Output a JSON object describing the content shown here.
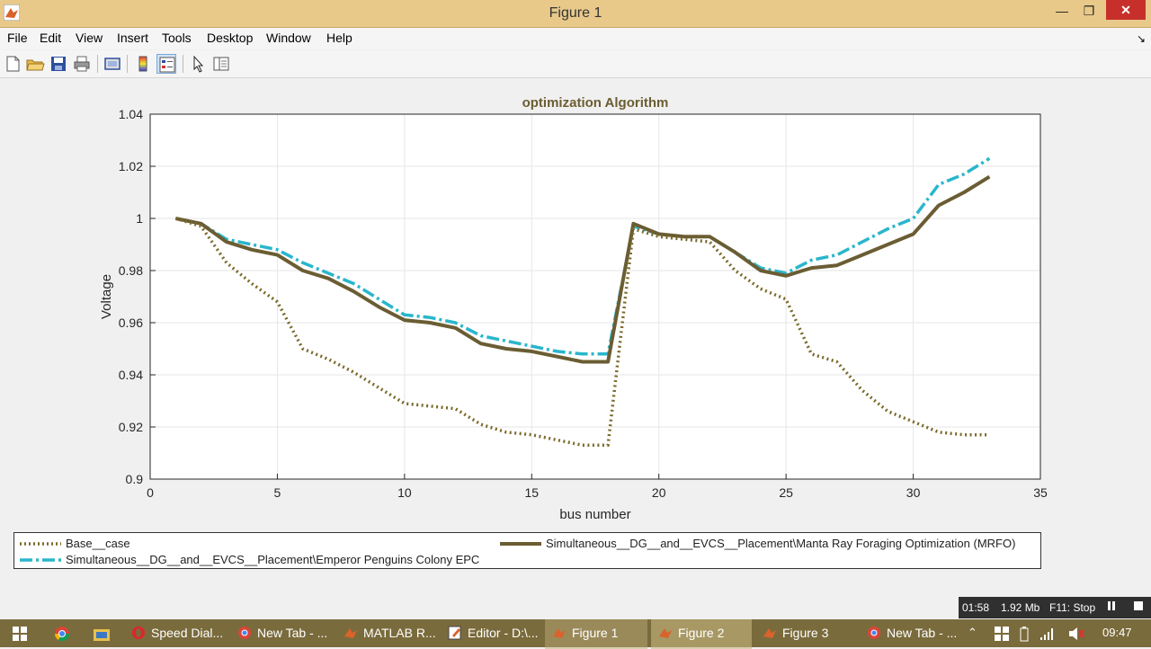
{
  "window": {
    "title": "Figure 1",
    "min_glyph": "—",
    "max_glyph": "❐",
    "close_glyph": "✕"
  },
  "menu": [
    "File",
    "Edit",
    "View",
    "Insert",
    "Tools",
    "Desktop",
    "Window",
    "Help"
  ],
  "menu_arrow": "↘",
  "toolbar_icons": [
    "new-figure-icon",
    "open-file-icon",
    "save-icon",
    "print-icon",
    "print-preview-icon",
    "insert-colorbar-icon",
    "insert-legend-icon",
    "edit-plot-icon",
    "property-inspector-icon"
  ],
  "colors": {
    "base": "#7a6a2a",
    "mrfo": "#6b5d33",
    "epc": "#29b6cc",
    "title": "#6b5d33",
    "taskbar": "#7a6b3c"
  },
  "chart_data": {
    "type": "line",
    "title": "optimization Algorithm",
    "xlabel": "bus number",
    "ylabel": "Voltage",
    "xlim": [
      0,
      35
    ],
    "ylim": [
      0.9,
      1.04
    ],
    "xticks": [
      "0",
      "5",
      "10",
      "15",
      "20",
      "25",
      "30",
      "35"
    ],
    "yticks": [
      "0.9",
      "0.92",
      "0.94",
      "0.96",
      "0.98",
      "1",
      "1.02",
      "1.04"
    ],
    "grid": true,
    "legend_position": "bottom",
    "x": [
      1,
      2,
      3,
      4,
      5,
      6,
      7,
      8,
      9,
      10,
      11,
      12,
      13,
      14,
      15,
      16,
      17,
      18,
      19,
      20,
      21,
      22,
      23,
      24,
      25,
      26,
      27,
      28,
      29,
      30,
      31,
      32,
      33
    ],
    "series": [
      {
        "name": "Base__case",
        "style": "dotted",
        "values": [
          1.0,
          0.997,
          0.983,
          0.975,
          0.968,
          0.95,
          0.946,
          0.941,
          0.935,
          0.929,
          0.928,
          0.927,
          0.921,
          0.918,
          0.917,
          0.915,
          0.913,
          0.913,
          0.996,
          0.993,
          0.992,
          0.991,
          0.98,
          0.973,
          0.969,
          0.948,
          0.945,
          0.934,
          0.926,
          0.922,
          0.918,
          0.917,
          0.917
        ]
      },
      {
        "name": "Simultaneous__DG__and__EVCS__Placement\\Manta Ray Foraging Optimization (MRFO)",
        "style": "solid",
        "values": [
          1.0,
          0.998,
          0.991,
          0.988,
          0.986,
          0.98,
          0.977,
          0.972,
          0.966,
          0.961,
          0.96,
          0.958,
          0.952,
          0.95,
          0.949,
          0.947,
          0.945,
          0.945,
          0.998,
          0.994,
          0.993,
          0.993,
          0.987,
          0.98,
          0.978,
          0.981,
          0.982,
          0.986,
          0.99,
          0.994,
          1.005,
          1.01,
          1.016
        ]
      },
      {
        "name": "Simultaneous__DG__and__EVCS__Placement\\Emperor Penguins Colony EPC",
        "style": "dashdot",
        "values": [
          1.0,
          0.998,
          0.992,
          0.99,
          0.988,
          0.983,
          0.979,
          0.975,
          0.969,
          0.963,
          0.962,
          0.96,
          0.955,
          0.953,
          0.951,
          0.949,
          0.948,
          0.948,
          0.997,
          0.994,
          0.993,
          0.993,
          0.987,
          0.981,
          0.979,
          0.984,
          0.986,
          0.991,
          0.996,
          1.0,
          1.013,
          1.017,
          1.023
        ]
      }
    ]
  },
  "status": {
    "time": "01:58",
    "size": "1.92 Mb",
    "stop": "F11: Stop"
  },
  "taskbar": [
    {
      "label": "",
      "icon": "windows-start-icon"
    },
    {
      "label": "",
      "icon": "chrome-icon"
    },
    {
      "label": "",
      "icon": "file-explorer-icon"
    },
    {
      "label": "Speed Dial...",
      "icon": "opera-icon"
    },
    {
      "label": "New Tab - ...",
      "icon": "chrome-icon"
    },
    {
      "label": "MATLAB R...",
      "icon": "matlab-icon"
    },
    {
      "label": "Editor - D:\\...",
      "icon": "editor-icon"
    },
    {
      "label": "Figure 1",
      "icon": "matlab-figure-icon",
      "active": true
    },
    {
      "label": "Figure 2",
      "icon": "matlab-figure-icon",
      "active": true
    },
    {
      "label": "Figure 3",
      "icon": "matlab-figure-icon"
    },
    {
      "label": "New Tab - ...",
      "icon": "chrome-icon"
    }
  ],
  "clock": "09:47"
}
